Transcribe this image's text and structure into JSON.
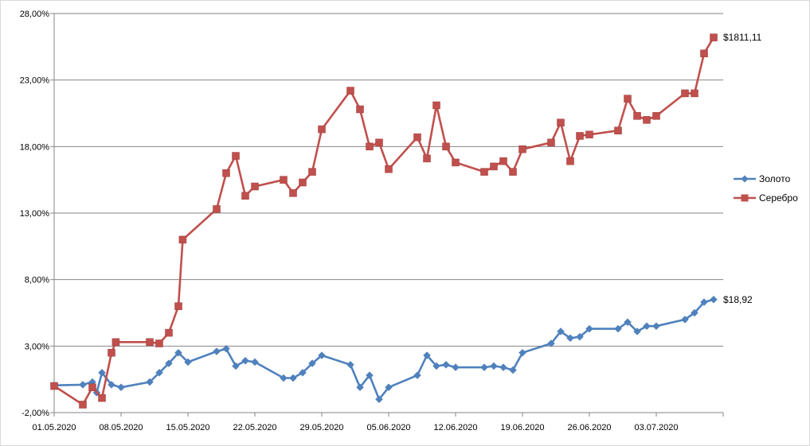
{
  "chart_data": {
    "type": "line",
    "title": "",
    "xlabel": "",
    "ylabel": "",
    "ylim": [
      -2,
      28
    ],
    "y_ticks": [
      "-2,00%",
      "3,00%",
      "8,00%",
      "13,00%",
      "18,00%",
      "23,00%",
      "28,00%"
    ],
    "y_tick_values": [
      -2,
      3,
      8,
      13,
      18,
      23,
      28
    ],
    "x_ticks": [
      "01.05.2020",
      "08.05.2020",
      "15.05.2020",
      "22.05.2020",
      "29.05.2020",
      "05.06.2020",
      "12.06.2020",
      "19.06.2020",
      "26.06.2020",
      "03.07.2020"
    ],
    "x_tick_days": [
      0,
      7,
      14,
      21,
      28,
      35,
      42,
      49,
      56,
      63
    ],
    "xlim_days": [
      0,
      70
    ],
    "grid": "horizontal",
    "legend_position": "right",
    "colors": {
      "gold": "#4F81BD",
      "silver": "#C0504D",
      "grid": "#868686",
      "axis": "#868686"
    },
    "series": [
      {
        "name": "Золото",
        "end_label": "$18,92",
        "x": [
          "01.05.2020",
          "04.05.2020",
          "05.05.2020",
          "05.05.2020",
          "06.05.2020",
          "07.05.2020",
          "08.05.2020",
          "11.05.2020",
          "12.05.2020",
          "13.05.2020",
          "14.05.2020",
          "15.05.2020",
          "18.05.2020",
          "19.05.2020",
          "20.05.2020",
          "21.05.2020",
          "22.05.2020",
          "25.05.2020",
          "26.05.2020",
          "27.05.2020",
          "28.05.2020",
          "29.05.2020",
          "01.06.2020",
          "02.06.2020",
          "03.06.2020",
          "04.06.2020",
          "05.06.2020",
          "08.06.2020",
          "09.06.2020",
          "10.06.2020",
          "11.06.2020",
          "12.06.2020",
          "15.06.2020",
          "16.06.2020",
          "17.06.2020",
          "18.06.2020",
          "19.06.2020",
          "22.06.2020",
          "23.06.2020",
          "24.06.2020",
          "25.06.2020",
          "26.06.2020",
          "29.06.2020",
          "30.06.2020",
          "01.07.2020",
          "02.07.2020",
          "03.07.2020",
          "06.07.2020",
          "07.07.2020",
          "08.07.2020",
          "09.07.2020"
        ],
        "values": [
          0.05,
          0.1,
          0.3,
          -0.5,
          1.0,
          0.1,
          -0.1,
          0.3,
          1.0,
          1.7,
          2.5,
          1.8,
          2.6,
          2.8,
          1.5,
          1.9,
          1.8,
          0.6,
          0.6,
          1.0,
          1.7,
          2.3,
          1.6,
          -0.1,
          0.8,
          -1.0,
          -0.1,
          0.8,
          2.3,
          1.5,
          1.6,
          1.4,
          1.4,
          1.5,
          1.4,
          1.2,
          2.5,
          3.2,
          4.1,
          3.6,
          3.7,
          4.3,
          4.3,
          4.8,
          4.1,
          4.5,
          4.5,
          5.0,
          5.5,
          6.3,
          6.5
        ]
      },
      {
        "name": "Серебро",
        "end_label": "$1811,11",
        "x": [
          "01.05.2020",
          "04.05.2020",
          "05.05.2020",
          "06.05.2020",
          "07.05.2020",
          "07.05.2020",
          "11.05.2020",
          "12.05.2020",
          "13.05.2020",
          "14.05.2020",
          "14.05.2020",
          "18.05.2020",
          "19.05.2020",
          "20.05.2020",
          "21.05.2020",
          "22.05.2020",
          "25.05.2020",
          "26.05.2020",
          "27.05.2020",
          "28.05.2020",
          "29.05.2020",
          "01.06.2020",
          "02.06.2020",
          "03.06.2020",
          "04.06.2020",
          "05.06.2020",
          "08.06.2020",
          "09.06.2020",
          "10.06.2020",
          "11.06.2020",
          "12.06.2020",
          "15.06.2020",
          "16.06.2020",
          "17.06.2020",
          "18.06.2020",
          "19.06.2020",
          "22.06.2020",
          "23.06.2020",
          "24.06.2020",
          "25.06.2020",
          "26.06.2020",
          "29.06.2020",
          "30.06.2020",
          "01.07.2020",
          "02.07.2020",
          "03.07.2020",
          "06.07.2020",
          "07.07.2020",
          "08.07.2020",
          "09.07.2020"
        ],
        "values": [
          0.0,
          -1.4,
          -0.1,
          -0.9,
          2.5,
          3.3,
          3.3,
          3.2,
          4.0,
          6.0,
          11.0,
          13.3,
          16.0,
          17.3,
          14.3,
          15.0,
          15.5,
          14.5,
          15.3,
          16.1,
          19.3,
          22.2,
          20.8,
          18.0,
          18.3,
          16.3,
          18.7,
          17.1,
          21.1,
          18.0,
          16.8,
          16.1,
          16.5,
          16.9,
          16.1,
          17.8,
          18.3,
          19.8,
          16.9,
          18.8,
          18.9,
          19.2,
          21.6,
          20.3,
          20.0,
          20.3,
          22.0,
          22.0,
          25.0,
          26.2
        ]
      }
    ]
  }
}
